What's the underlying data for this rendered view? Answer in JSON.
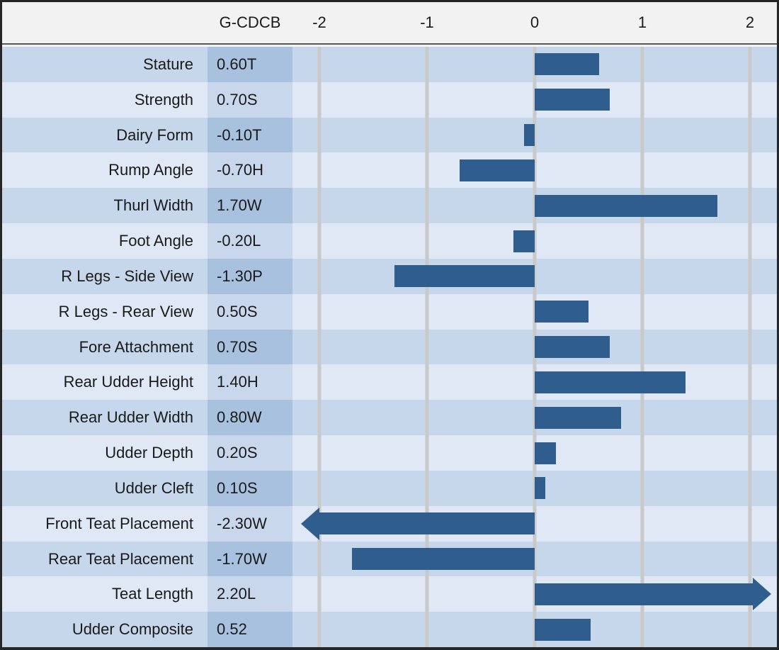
{
  "chart_data": {
    "type": "bar",
    "orientation": "horizontal",
    "value_column_header": "G-CDCB",
    "x_ticks": [
      -2,
      -1,
      0,
      1,
      2
    ],
    "xlim": [
      -2.25,
      2.25
    ],
    "grid": "vertical gridlines at each tick",
    "rows": [
      {
        "trait": "Stature",
        "sta_label": "0.60T",
        "value": 0.6,
        "arrow": false
      },
      {
        "trait": "Strength",
        "sta_label": "0.70S",
        "value": 0.7,
        "arrow": false
      },
      {
        "trait": "Dairy Form",
        "sta_label": "-0.10T",
        "value": -0.1,
        "arrow": false
      },
      {
        "trait": "Rump Angle",
        "sta_label": "-0.70H",
        "value": -0.7,
        "arrow": false
      },
      {
        "trait": "Thurl Width",
        "sta_label": "1.70W",
        "value": 1.7,
        "arrow": false
      },
      {
        "trait": "Foot Angle",
        "sta_label": "-0.20L",
        "value": -0.2,
        "arrow": false
      },
      {
        "trait": "R Legs - Side View",
        "sta_label": "-1.30P",
        "value": -1.3,
        "arrow": false
      },
      {
        "trait": "R Legs - Rear View",
        "sta_label": "0.50S",
        "value": 0.5,
        "arrow": false
      },
      {
        "trait": "Fore Attachment",
        "sta_label": "0.70S",
        "value": 0.7,
        "arrow": false
      },
      {
        "trait": "Rear Udder Height",
        "sta_label": "1.40H",
        "value": 1.4,
        "arrow": false
      },
      {
        "trait": "Rear Udder Width",
        "sta_label": "0.80W",
        "value": 0.8,
        "arrow": false
      },
      {
        "trait": "Udder Depth",
        "sta_label": "0.20S",
        "value": 0.2,
        "arrow": false
      },
      {
        "trait": "Udder Cleft",
        "sta_label": "0.10S",
        "value": 0.1,
        "arrow": false
      },
      {
        "trait": "Front Teat Placement",
        "sta_label": "-2.30W",
        "value": -2.3,
        "arrow": true
      },
      {
        "trait": "Rear Teat Placement",
        "sta_label": "-1.70W",
        "value": -1.7,
        "arrow": false
      },
      {
        "trait": "Teat Length",
        "sta_label": "2.20L",
        "value": 2.2,
        "arrow": true
      },
      {
        "trait": "Udder Composite",
        "sta_label": "0.52",
        "value": 0.52,
        "arrow": false
      }
    ],
    "colors": {
      "bar": "#2F5E8E",
      "row_band_dark": "#C6D6EB",
      "row_band_light": "#DFE8F4",
      "value_cell_dark": "#A8C1DE",
      "value_cell_light": "#C8D7EC",
      "gridline": "#C9C9C9",
      "header_bg": "#F2F2F2",
      "border": "#262626",
      "text": "#1A1A1A"
    }
  }
}
